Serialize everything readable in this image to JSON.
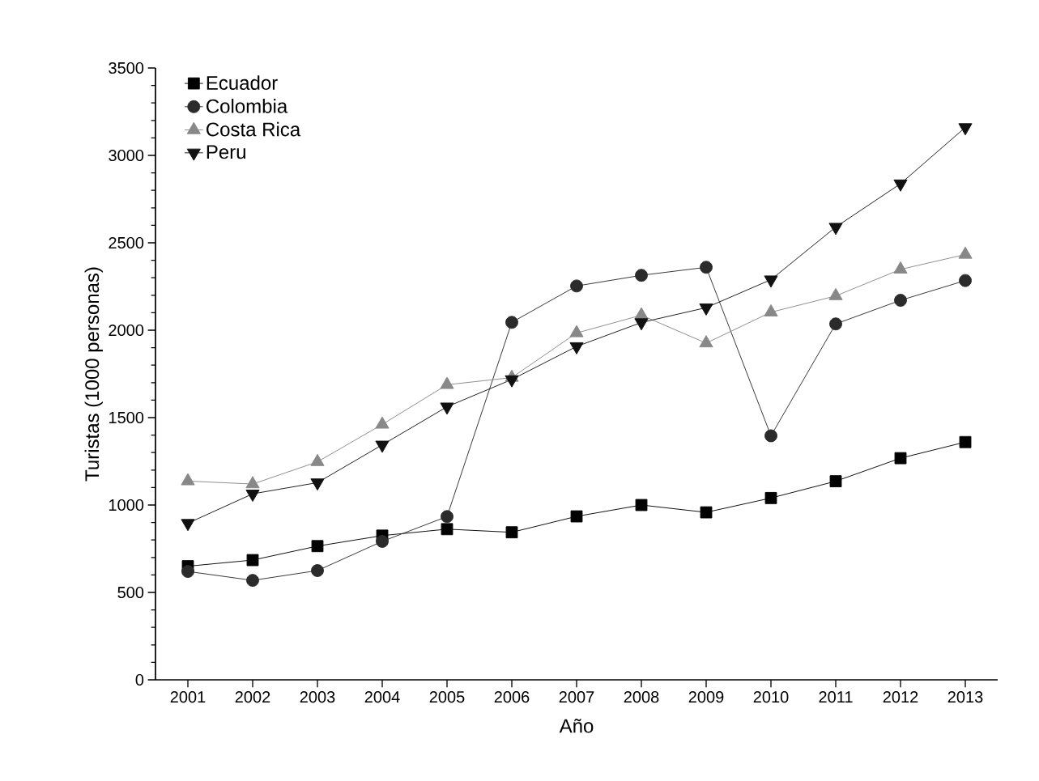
{
  "chart_data": {
    "type": "line",
    "xlabel": "Año",
    "ylabel": "Turistas (1000 personas)",
    "categories": [
      "2001",
      "2002",
      "2003",
      "2004",
      "2005",
      "2006",
      "2007",
      "2008",
      "2009",
      "2010",
      "2011",
      "2012",
      "2013"
    ],
    "ylim": [
      0,
      3500
    ],
    "yticks": [
      0,
      500,
      1000,
      1500,
      2000,
      2500,
      3000,
      3500
    ],
    "legend": "top left",
    "grid": false,
    "line_style": "solid",
    "series": [
      {
        "name": "Ecuador",
        "color": "#000000",
        "marker": "square",
        "values": [
          650,
          685,
          765,
          825,
          862,
          844,
          935,
          1000,
          958,
          1040,
          1136,
          1268,
          1360
        ]
      },
      {
        "name": "Colombia",
        "color": "#2b2b2b",
        "marker": "circle",
        "values": [
          620,
          569,
          625,
          792,
          934,
          2045,
          2253,
          2314,
          2360,
          1396,
          2036,
          2171,
          2284
        ]
      },
      {
        "name": "Costa Rica",
        "color": "#888888",
        "marker": "triangle",
        "values": [
          1137,
          1120,
          1247,
          1461,
          1688,
          1729,
          1984,
          2086,
          1926,
          2103,
          2196,
          2348,
          2433
        ]
      },
      {
        "name": "Peru",
        "color": "#111111",
        "marker": "triangle-down",
        "values": [
          896,
          1064,
          1128,
          1344,
          1562,
          1718,
          1907,
          2044,
          2129,
          2289,
          2590,
          2838,
          3160
        ]
      }
    ]
  }
}
